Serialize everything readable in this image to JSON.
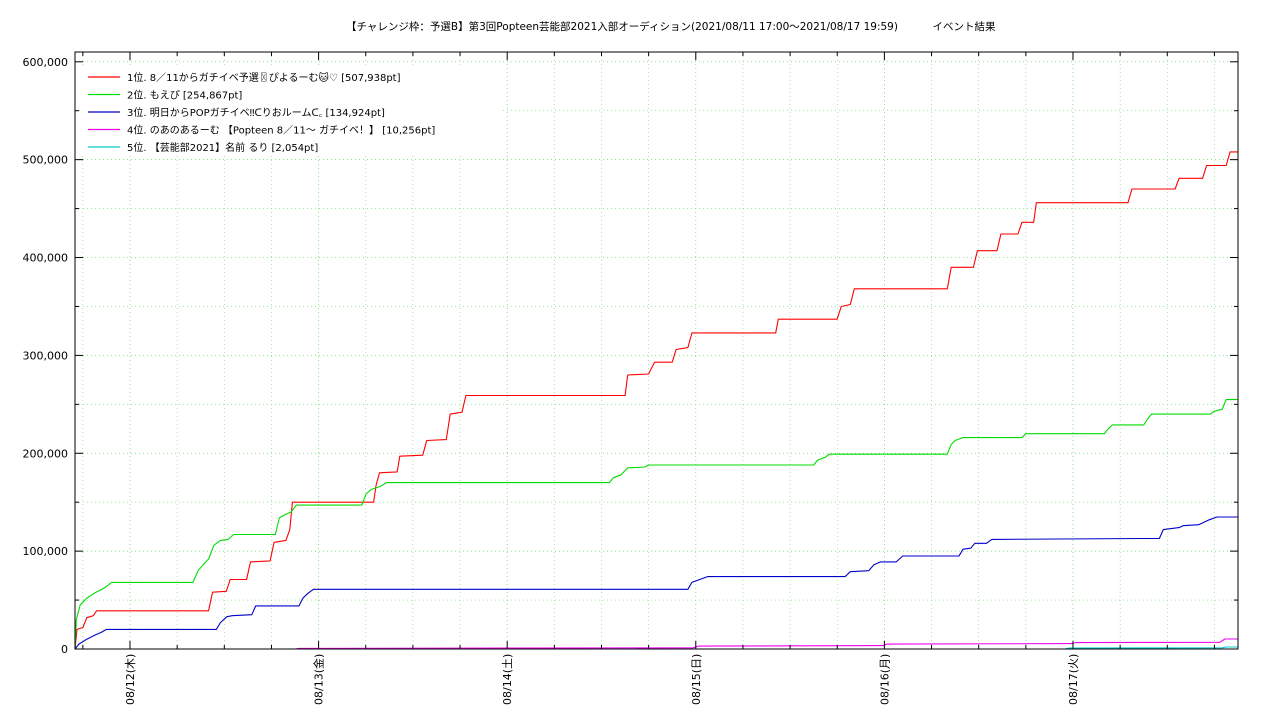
{
  "chart_data": {
    "type": "line",
    "title": "【チャレンジ枠：予選B】第3回Popteen芸能部2021入部オーディション(2021/08/11 17:00〜2021/08/17 19:59)",
    "subtitle": "イベント結果",
    "xlabel": "",
    "ylabel": "",
    "xlim": [
      "2021/08/11 17:00",
      "2021/08/17 21:00"
    ],
    "ylim": [
      0,
      610000
    ],
    "grid": true,
    "legend_position": "top-left",
    "y_ticks": [
      0,
      100000,
      200000,
      300000,
      400000,
      500000,
      600000
    ],
    "y_tick_labels": [
      "0",
      "100,000",
      "200,000",
      "300,000",
      "400,000",
      "500,000",
      "600,000"
    ],
    "x_ticks": [
      "2021/08/12 00:00",
      "2021/08/13 00:00",
      "2021/08/14 00:00",
      "2021/08/15 00:00",
      "2021/08/16 00:00",
      "2021/08/17 00:00"
    ],
    "x_tick_labels": [
      "08/12(木)",
      "08/13(金)",
      "08/14(土)",
      "08/15(日)",
      "08/16(月)",
      "08/17(火)"
    ],
    "series": [
      {
        "name": "1位. 8／11からガチイベ予選〿ぴよるーむ🐱♡ [507,938pt]",
        "color": "#ff0000",
        "points": [
          [
            "2021/08/11 17:00",
            0
          ],
          [
            "2021/08/11 17:15",
            20000
          ],
          [
            "2021/08/11 18:00",
            22000
          ],
          [
            "2021/08/11 18:30",
            32000
          ],
          [
            "2021/08/11 19:20",
            34000
          ],
          [
            "2021/08/11 19:45",
            39000
          ],
          [
            "2021/08/12 10:00",
            39000
          ],
          [
            "2021/08/12 10:30",
            58000
          ],
          [
            "2021/08/12 12:15",
            59000
          ],
          [
            "2021/08/12 12:45",
            71000
          ],
          [
            "2021/08/12 14:50",
            71000
          ],
          [
            "2021/08/12 15:20",
            89000
          ],
          [
            "2021/08/12 17:50",
            90000
          ],
          [
            "2021/08/12 18:20",
            109000
          ],
          [
            "2021/08/12 19:50",
            111000
          ],
          [
            "2021/08/12 20:20",
            122000
          ],
          [
            "2021/08/12 20:40",
            150000
          ],
          [
            "2021/08/13 07:00",
            150000
          ],
          [
            "2021/08/13 07:20",
            168000
          ],
          [
            "2021/08/13 07:45",
            180000
          ],
          [
            "2021/08/13 10:00",
            181000
          ],
          [
            "2021/08/13 10:20",
            197000
          ],
          [
            "2021/08/13 13:15",
            198000
          ],
          [
            "2021/08/13 13:45",
            213000
          ],
          [
            "2021/08/13 16:15",
            214000
          ],
          [
            "2021/08/13 16:45",
            240000
          ],
          [
            "2021/08/13 18:15",
            242000
          ],
          [
            "2021/08/13 18:45",
            259000
          ],
          [
            "2021/08/14 15:00",
            259000
          ],
          [
            "2021/08/14 15:20",
            280000
          ],
          [
            "2021/08/14 18:00",
            281000
          ],
          [
            "2021/08/14 18:45",
            293000
          ],
          [
            "2021/08/14 21:00",
            293000
          ],
          [
            "2021/08/14 21:30",
            306000
          ],
          [
            "2021/08/14 23:00",
            308000
          ],
          [
            "2021/08/14 23:30",
            323000
          ],
          [
            "2021/08/15 10:10",
            323000
          ],
          [
            "2021/08/15 10:30",
            337000
          ],
          [
            "2021/08/15 18:00",
            337000
          ],
          [
            "2021/08/15 18:30",
            350000
          ],
          [
            "2021/08/15 19:40",
            352000
          ],
          [
            "2021/08/15 20:10",
            368000
          ],
          [
            "2021/08/16 08:00",
            368000
          ],
          [
            "2021/08/16 08:30",
            390000
          ],
          [
            "2021/08/16 11:20",
            390000
          ],
          [
            "2021/08/16 11:50",
            407000
          ],
          [
            "2021/08/16 14:20",
            407000
          ],
          [
            "2021/08/16 14:50",
            424000
          ],
          [
            "2021/08/16 17:00",
            424000
          ],
          [
            "2021/08/16 17:30",
            436000
          ],
          [
            "2021/08/16 19:00",
            436000
          ],
          [
            "2021/08/16 19:20",
            456000
          ],
          [
            "2021/08/17 07:00",
            456000
          ],
          [
            "2021/08/17 07:30",
            470000
          ],
          [
            "2021/08/17 13:00",
            470000
          ],
          [
            "2021/08/17 13:30",
            481000
          ],
          [
            "2021/08/17 16:30",
            481000
          ],
          [
            "2021/08/17 17:00",
            494000
          ],
          [
            "2021/08/17 19:30",
            494000
          ],
          [
            "2021/08/17 20:00",
            507938
          ],
          [
            "2021/08/17 21:00",
            507938
          ]
        ]
      },
      {
        "name": "2位. もえぴ [254,867pt]",
        "color": "#00dd00",
        "points": [
          [
            "2021/08/11 17:00",
            0
          ],
          [
            "2021/08/11 17:10",
            30000
          ],
          [
            "2021/08/11 17:40",
            45000
          ],
          [
            "2021/08/11 18:30",
            52000
          ],
          [
            "2021/08/11 19:40",
            58000
          ],
          [
            "2021/08/11 20:40",
            62000
          ],
          [
            "2021/08/11 21:40",
            68000
          ],
          [
            "2021/08/12 08:00",
            68000
          ],
          [
            "2021/08/12 08:40",
            80000
          ],
          [
            "2021/08/12 09:30",
            88000
          ],
          [
            "2021/08/12 10:00",
            92000
          ],
          [
            "2021/08/12 10:40",
            106000
          ],
          [
            "2021/08/12 11:30",
            111000
          ],
          [
            "2021/08/12 12:30",
            112000
          ],
          [
            "2021/08/12 13:10",
            117000
          ],
          [
            "2021/08/12 18:30",
            117000
          ],
          [
            "2021/08/12 19:00",
            134000
          ],
          [
            "2021/08/12 19:40",
            137000
          ],
          [
            "2021/08/12 20:30",
            140000
          ],
          [
            "2021/08/12 21:10",
            147000
          ],
          [
            "2021/08/13 05:30",
            147000
          ],
          [
            "2021/08/13 06:00",
            158000
          ],
          [
            "2021/08/13 06:40",
            163000
          ],
          [
            "2021/08/13 07:50",
            166000
          ],
          [
            "2021/08/13 08:40",
            170000
          ],
          [
            "2021/08/14 13:00",
            170000
          ],
          [
            "2021/08/14 13:30",
            175000
          ],
          [
            "2021/08/14 14:30",
            178000
          ],
          [
            "2021/08/14 15:20",
            185000
          ],
          [
            "2021/08/14 17:30",
            186000
          ],
          [
            "2021/08/14 18:00",
            188000
          ],
          [
            "2021/08/15 15:00",
            188000
          ],
          [
            "2021/08/15 15:30",
            193000
          ],
          [
            "2021/08/15 16:30",
            196000
          ],
          [
            "2021/08/15 17:00",
            199000
          ],
          [
            "2021/08/16 08:00",
            199000
          ],
          [
            "2021/08/16 08:30",
            209000
          ],
          [
            "2021/08/16 09:00",
            213000
          ],
          [
            "2021/08/16 10:00",
            216000
          ],
          [
            "2021/08/16 17:30",
            216000
          ],
          [
            "2021/08/16 18:00",
            220000
          ],
          [
            "2021/08/17 04:00",
            220000
          ],
          [
            "2021/08/17 04:30",
            225000
          ],
          [
            "2021/08/17 05:00",
            229000
          ],
          [
            "2021/08/17 09:00",
            229000
          ],
          [
            "2021/08/17 09:30",
            235000
          ],
          [
            "2021/08/17 10:00",
            240000
          ],
          [
            "2021/08/17 17:30",
            240000
          ],
          [
            "2021/08/17 18:00",
            243000
          ],
          [
            "2021/08/17 19:00",
            245000
          ],
          [
            "2021/08/17 19:30",
            254867
          ],
          [
            "2021/08/17 21:00",
            254867
          ]
        ]
      },
      {
        "name": "3位. 明日からPOPガチイベ‼︎ᑕりおルームᑕ꜀ [134,924pt]",
        "color": "#0000cc",
        "points": [
          [
            "2021/08/11 17:00",
            0
          ],
          [
            "2021/08/11 17:30",
            5000
          ],
          [
            "2021/08/11 18:30",
            10000
          ],
          [
            "2021/08/11 19:30",
            14000
          ],
          [
            "2021/08/11 20:20",
            17000
          ],
          [
            "2021/08/11 21:00",
            20000
          ],
          [
            "2021/08/12 11:00",
            20000
          ],
          [
            "2021/08/12 11:30",
            27000
          ],
          [
            "2021/08/12 12:20",
            33000
          ],
          [
            "2021/08/12 13:00",
            34000
          ],
          [
            "2021/08/12 15:30",
            35000
          ],
          [
            "2021/08/12 16:00",
            44000
          ],
          [
            "2021/08/12 21:30",
            44000
          ],
          [
            "2021/08/12 22:00",
            52000
          ],
          [
            "2021/08/12 22:40",
            57000
          ],
          [
            "2021/08/12 23:20",
            61000
          ],
          [
            "2021/08/14 23:00",
            61000
          ],
          [
            "2021/08/14 23:30",
            68000
          ],
          [
            "2021/08/15 00:30",
            71000
          ],
          [
            "2021/08/15 01:30",
            74000
          ],
          [
            "2021/08/15 19:00",
            74000
          ],
          [
            "2021/08/15 19:40",
            79000
          ],
          [
            "2021/08/15 22:00",
            80000
          ],
          [
            "2021/08/15 22:40",
            86000
          ],
          [
            "2021/08/15 23:30",
            89000
          ],
          [
            "2021/08/16 01:30",
            89000
          ],
          [
            "2021/08/16 02:20",
            95000
          ],
          [
            "2021/08/16 09:30",
            95000
          ],
          [
            "2021/08/16 10:00",
            102000
          ],
          [
            "2021/08/16 11:00",
            103000
          ],
          [
            "2021/08/16 11:30",
            108000
          ],
          [
            "2021/08/16 13:00",
            108000
          ],
          [
            "2021/08/16 13:40",
            112000
          ],
          [
            "2021/08/17 11:00",
            113000
          ],
          [
            "2021/08/17 11:30",
            122000
          ],
          [
            "2021/08/17 13:30",
            124000
          ],
          [
            "2021/08/17 14:00",
            126000
          ],
          [
            "2021/08/17 16:00",
            127000
          ],
          [
            "2021/08/17 17:20",
            132000
          ],
          [
            "2021/08/17 18:20",
            134924
          ],
          [
            "2021/08/17 21:00",
            134924
          ]
        ]
      },
      {
        "name": "4位. のあのあるーむ 【Popteen 8／11〜 ガチイベ！】 [10,256pt]",
        "color": "#ee00ee",
        "points": [
          [
            "2021/08/11 17:00",
            0
          ],
          [
            "2021/08/12 21:00",
            0
          ],
          [
            "2021/08/12 21:30",
            600
          ],
          [
            "2021/08/14 23:40",
            1200
          ],
          [
            "2021/08/15 00:20",
            3000
          ],
          [
            "2021/08/15 23:50",
            3500
          ],
          [
            "2021/08/16 00:20",
            5000
          ],
          [
            "2021/08/16 23:50",
            5500
          ],
          [
            "2021/08/17 00:20",
            6500
          ],
          [
            "2021/08/17 18:40",
            6800
          ],
          [
            "2021/08/17 19:20",
            10256
          ],
          [
            "2021/08/17 21:00",
            10256
          ]
        ]
      },
      {
        "name": "5位. 【芸能部2021】名前 るり [2,054pt]",
        "color": "#00cccc",
        "points": [
          [
            "2021/08/11 17:00",
            0
          ],
          [
            "2021/08/16 23:00",
            0
          ],
          [
            "2021/08/16 23:30",
            1000
          ],
          [
            "2021/08/17 19:00",
            1200
          ],
          [
            "2021/08/17 19:30",
            2054
          ],
          [
            "2021/08/17 21:00",
            2054
          ]
        ]
      }
    ]
  },
  "colors": {
    "grid": "#66dd66",
    "axis": "#000000",
    "background": "#ffffff"
  }
}
